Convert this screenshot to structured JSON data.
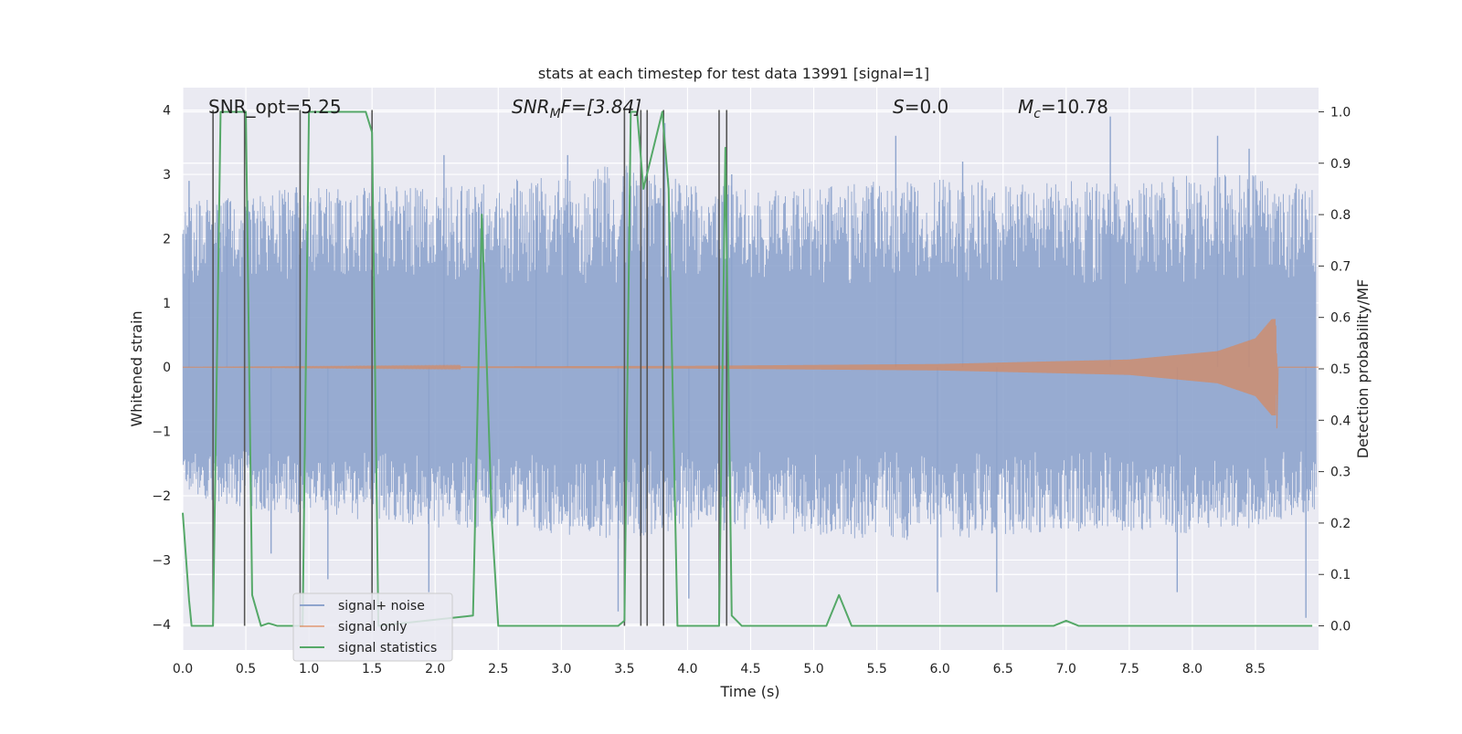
{
  "chart_data": {
    "type": "line",
    "title": "stats at each timestep for test data 13991 [signal=1]",
    "xlabel": "Time (s)",
    "ylabel_left": "Whitened strain",
    "ylabel_right": "Detection probability/MF",
    "xlim": [
      0,
      9.0
    ],
    "ylim_left": [
      -4.4,
      4.35
    ],
    "ylim_right": [
      -0.047,
      1.047
    ],
    "x_ticks": [
      "0.0",
      "0.5",
      "1.0",
      "1.5",
      "2.0",
      "2.5",
      "3.0",
      "3.5",
      "4.0",
      "4.5",
      "5.0",
      "5.5",
      "6.0",
      "6.5",
      "7.0",
      "7.5",
      "8.0",
      "8.5"
    ],
    "y_ticks_left": [
      "4",
      "3",
      "2",
      "1",
      "0",
      "−1",
      "−2",
      "−3",
      "−4"
    ],
    "y_ticks_right": [
      "1.0",
      "0.9",
      "0.8",
      "0.7",
      "0.6",
      "0.5",
      "0.4",
      "0.3",
      "0.2",
      "0.1",
      "0.0"
    ],
    "annotations": {
      "snr_opt": "SNR_opt=5.25",
      "snr_mf_sym": "SNR",
      "snr_mf_sub": "M",
      "snr_mf_rest": "F=[3.84]",
      "s_sym": "S",
      "s_rest": "=0.0",
      "mc_sym": "M",
      "mc_sub": "c",
      "mc_rest": "=10.78"
    },
    "legend": {
      "position": "lower-left",
      "entries": [
        "signal+ noise",
        "signal only",
        "signal statistics"
      ]
    },
    "colors": {
      "noise": "#8ea4cd",
      "signal": "#dd8452",
      "stats": "#55a868",
      "vline": "#555555",
      "bg": "#eaeaf2",
      "grid": "#ffffff"
    },
    "series": [
      {
        "name": "signal+ noise",
        "description": "whitened strain time series, noise envelope",
        "envelope": [
          [
            0.0,
            2.6,
            -2.0
          ],
          [
            0.5,
            2.7,
            -2.2
          ],
          [
            1.0,
            2.8,
            -2.3
          ],
          [
            1.5,
            2.9,
            -2.4
          ],
          [
            2.0,
            2.8,
            -2.5
          ],
          [
            2.5,
            2.9,
            -2.5
          ],
          [
            3.0,
            3.0,
            -2.6
          ],
          [
            3.5,
            3.2,
            -2.7
          ],
          [
            4.0,
            2.9,
            -2.5
          ],
          [
            4.5,
            2.8,
            -2.6
          ],
          [
            5.0,
            2.8,
            -2.6
          ],
          [
            5.5,
            2.9,
            -2.7
          ],
          [
            6.0,
            3.0,
            -2.7
          ],
          [
            6.5,
            2.9,
            -2.6
          ],
          [
            7.0,
            2.9,
            -2.6
          ],
          [
            7.5,
            2.9,
            -2.6
          ],
          [
            8.0,
            3.0,
            -2.6
          ],
          [
            8.5,
            3.0,
            -2.5
          ],
          [
            9.0,
            2.8,
            -2.2
          ]
        ],
        "spikes": [
          [
            0.05,
            2.9
          ],
          [
            0.35,
            2.6
          ],
          [
            0.7,
            -2.9
          ],
          [
            0.9,
            2.8
          ],
          [
            1.15,
            -3.3
          ],
          [
            1.5,
            -3.4
          ],
          [
            1.95,
            -3.5
          ],
          [
            2.07,
            3.3
          ],
          [
            2.8,
            2.8
          ],
          [
            3.05,
            3.3
          ],
          [
            3.45,
            -3.8
          ],
          [
            3.82,
            3.8
          ],
          [
            4.01,
            -3.6
          ],
          [
            4.35,
            3.0
          ],
          [
            5.65,
            3.6
          ],
          [
            5.98,
            -3.5
          ],
          [
            6.18,
            3.2
          ],
          [
            6.45,
            -3.5
          ],
          [
            7.35,
            3.9
          ],
          [
            7.88,
            -3.5
          ],
          [
            8.2,
            3.6
          ],
          [
            8.45,
            3.4
          ],
          [
            8.9,
            -3.9
          ]
        ]
      },
      {
        "name": "signal only",
        "description": "inspiral chirp growing towards merger",
        "amplitude": [
          [
            0.0,
            0.0
          ],
          [
            4.0,
            0.02
          ],
          [
            6.0,
            0.05
          ],
          [
            7.5,
            0.12
          ],
          [
            8.2,
            0.25
          ],
          [
            8.5,
            0.45
          ],
          [
            8.63,
            0.75
          ],
          [
            8.66,
            0.75
          ],
          [
            8.67,
            0.0
          ]
        ]
      },
      {
        "name": "signal statistics",
        "description": "detection probability per timestep (right axis)",
        "points": [
          [
            0.0,
            0.22
          ],
          [
            0.05,
            0.05
          ],
          [
            0.07,
            0.0
          ],
          [
            0.15,
            0.0
          ],
          [
            0.24,
            0.0
          ],
          [
            0.3,
            1.0
          ],
          [
            0.37,
            1.0
          ],
          [
            0.45,
            1.0
          ],
          [
            0.5,
            1.0
          ],
          [
            0.55,
            0.06
          ],
          [
            0.62,
            0.0
          ],
          [
            0.68,
            0.005
          ],
          [
            0.75,
            0.0
          ],
          [
            0.85,
            0.0
          ],
          [
            0.95,
            0.0
          ],
          [
            1.0,
            1.0
          ],
          [
            1.1,
            1.0
          ],
          [
            1.45,
            1.0
          ],
          [
            1.5,
            0.96
          ],
          [
            1.55,
            0.0
          ],
          [
            2.3,
            0.02
          ],
          [
            2.37,
            0.8
          ],
          [
            2.45,
            0.2
          ],
          [
            2.5,
            0.0
          ],
          [
            2.6,
            0.0
          ],
          [
            2.85,
            0.0
          ],
          [
            3.45,
            0.0
          ],
          [
            3.5,
            0.01
          ],
          [
            3.55,
            1.0
          ],
          [
            3.6,
            1.0
          ],
          [
            3.65,
            0.85
          ],
          [
            3.8,
            1.0
          ],
          [
            3.85,
            0.85
          ],
          [
            3.92,
            0.0
          ],
          [
            4.0,
            0.0
          ],
          [
            4.25,
            0.0
          ],
          [
            4.3,
            0.93
          ],
          [
            4.35,
            0.02
          ],
          [
            4.43,
            0.0
          ],
          [
            4.7,
            0.0
          ],
          [
            5.1,
            0.0
          ],
          [
            5.2,
            0.06
          ],
          [
            5.3,
            0.0
          ],
          [
            6.9,
            0.0
          ],
          [
            7.0,
            0.01
          ],
          [
            7.1,
            0.0
          ],
          [
            8.95,
            0.0
          ]
        ]
      }
    ],
    "vertical_lines_x": [
      0.24,
      0.49,
      0.93,
      1.5,
      3.5,
      3.63,
      3.68,
      3.81,
      4.25,
      4.31
    ]
  }
}
